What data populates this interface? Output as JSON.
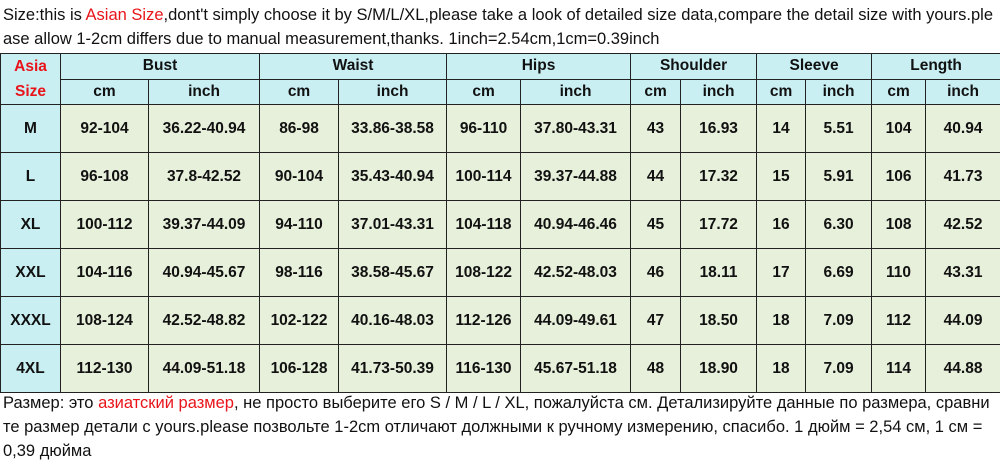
{
  "note_top": {
    "parts": [
      "Size:this is ",
      "Asian Size",
      ",dont't simply choose it by S/M/L/XL,please take a look of detailed size data,compare the detail size with yours.please allow 1-2cm differs due to manual measurement,thanks. 1inch=2.54cm,1cm=0.39inch"
    ]
  },
  "table": {
    "corner": [
      "Asia",
      "Size"
    ],
    "groups": [
      "Bust",
      "Waist",
      "Hips",
      "Shoulder",
      "Sleeve",
      "Length"
    ],
    "units": [
      "cm",
      "inch",
      "cm",
      "inch",
      "cm",
      "inch",
      "cm",
      "inch",
      "cm",
      "inch",
      "cm",
      "inch"
    ],
    "rows": [
      [
        "M",
        "92-104",
        "36.22-40.94",
        "86-98",
        "33.86-38.58",
        "96-110",
        "37.80-43.31",
        "43",
        "16.93",
        "14",
        "5.51",
        "104",
        "40.94"
      ],
      [
        "L",
        "96-108",
        "37.8-42.52",
        "90-104",
        "35.43-40.94",
        "100-114",
        "39.37-44.88",
        "44",
        "17.32",
        "15",
        "5.91",
        "106",
        "41.73"
      ],
      [
        "XL",
        "100-112",
        "39.37-44.09",
        "94-110",
        "37.01-43.31",
        "104-118",
        "40.94-46.46",
        "45",
        "17.72",
        "16",
        "6.30",
        "108",
        "42.52"
      ],
      [
        "XXL",
        "104-116",
        "40.94-45.67",
        "98-116",
        "38.58-45.67",
        "108-122",
        "42.52-48.03",
        "46",
        "18.11",
        "17",
        "6.69",
        "110",
        "43.31"
      ],
      [
        "XXXL",
        "108-124",
        "42.52-48.82",
        "102-122",
        "40.16-48.03",
        "112-126",
        "44.09-49.61",
        "47",
        "18.50",
        "18",
        "7.09",
        "112",
        "44.09"
      ],
      [
        "4XL",
        "112-130",
        "44.09-51.18",
        "106-128",
        "41.73-50.39",
        "116-130",
        "45.67-51.18",
        "48",
        "18.90",
        "18",
        "7.09",
        "114",
        "44.88"
      ]
    ]
  },
  "note_bottom": {
    "parts": [
      "Размер: это ",
      "азиатский размер",
      ", не просто выберите его S / M / L / XL, пожалуйста см. Детализируйте данные по размера, сравните размер детали с yours.please позвольте 1-2cm отличают должными к ручному измерению, спасибо. 1 дюйм = 2,54 см, 1 см = 0,39 дюйма"
    ]
  }
}
